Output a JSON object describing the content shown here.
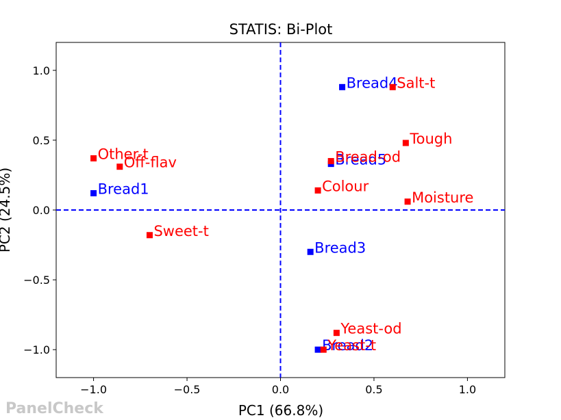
{
  "chart_data": {
    "type": "scatter",
    "title": "STATIS: Bi-Plot",
    "xlabel": "PC1 (66.8%)",
    "ylabel": "PC2 (24.5%)",
    "xlim": [
      -1.2,
      1.2
    ],
    "ylim": [
      -1.2,
      1.2
    ],
    "xticks": [
      -1.0,
      -0.5,
      0.0,
      0.5,
      1.0
    ],
    "yticks": [
      -1.0,
      -0.5,
      0.0,
      0.5,
      1.0
    ],
    "xtick_labels": [
      "−1.0",
      "−0.5",
      "0.0",
      "0.5",
      "1.0"
    ],
    "ytick_labels": [
      "−1.0",
      "−0.5",
      "0.0",
      "0.5",
      "1.0"
    ],
    "grid": false,
    "reference_lines": {
      "x": 0,
      "y": 0,
      "color": "#0000ff",
      "style": "dashed"
    },
    "series": [
      {
        "color": "#0000ff",
        "points": [
          {
            "label": "Bread1",
            "x": -1.0,
            "y": 0.12
          },
          {
            "label": "Bread2",
            "x": 0.2,
            "y": -1.0
          },
          {
            "label": "Bread3",
            "x": 0.16,
            "y": -0.3
          },
          {
            "label": "Bread4",
            "x": 0.33,
            "y": 0.88
          },
          {
            "label": "Bread5",
            "x": 0.27,
            "y": 0.33
          }
        ]
      },
      {
        "color": "#ff0000",
        "points": [
          {
            "label": "Other-t",
            "x": -1.0,
            "y": 0.37
          },
          {
            "label": "Off-flav",
            "x": -0.86,
            "y": 0.31
          },
          {
            "label": "Sweet-t",
            "x": -0.7,
            "y": -0.18
          },
          {
            "label": "Salt-t",
            "x": 0.6,
            "y": 0.88
          },
          {
            "label": "Tough",
            "x": 0.67,
            "y": 0.48
          },
          {
            "label": "Bread-od",
            "x": 0.27,
            "y": 0.35
          },
          {
            "label": "Colour",
            "x": 0.2,
            "y": 0.14
          },
          {
            "label": "Moisture",
            "x": 0.68,
            "y": 0.06
          },
          {
            "label": "Yeast-od",
            "x": 0.3,
            "y": -0.88
          },
          {
            "label": "Yeast-t",
            "x": 0.23,
            "y": -1.0
          }
        ]
      }
    ]
  },
  "watermark": "PanelCheck"
}
